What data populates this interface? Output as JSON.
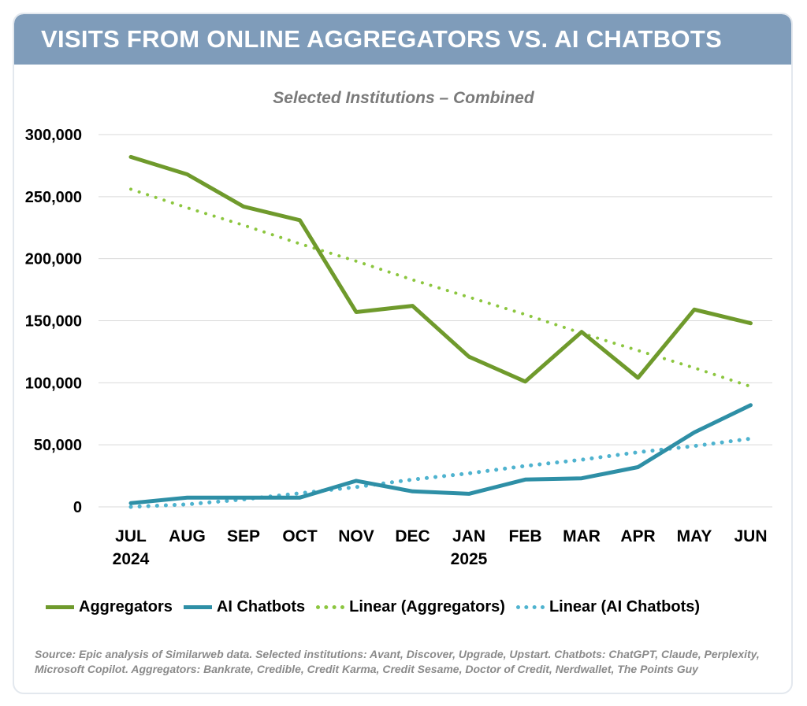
{
  "header": {
    "title": "VISITS FROM ONLINE AGGREGATORS VS. AI CHATBOTS"
  },
  "subtitle": "Selected Institutions – Combined",
  "source": "Source: Epic analysis of Similarweb data. Selected institutions: Avant, Discover, Upgrade, Upstart. Chatbots: ChatGPT, Claude, Perplexity, Microsoft Copilot. Aggregators: Bankrate, Credible, Credit Karma, Credit Sesame, Doctor of Credit, Nerdwallet, The Points Guy",
  "colors": {
    "aggregators": "#6f9a2c",
    "ai_chatbots": "#2e8fa6",
    "linear_aggregators": "#8cc63f",
    "linear_ai": "#4fb3cf",
    "grid": "#d9d9d9"
  },
  "chart_data": {
    "type": "line",
    "categories": [
      "JUL",
      "AUG",
      "SEP",
      "OCT",
      "NOV",
      "DEC",
      "JAN",
      "FEB",
      "MAR",
      "APR",
      "MAY",
      "JUN"
    ],
    "category_sublabels": [
      "2024",
      "",
      "",
      "",
      "",
      "",
      "2025",
      "",
      "",
      "",
      "",
      ""
    ],
    "ylim": [
      0,
      300000
    ],
    "yticks": [
      0,
      50000,
      100000,
      150000,
      200000,
      250000,
      300000
    ],
    "ytick_labels": [
      "0",
      "50,000",
      "100,000",
      "150,000",
      "200,000",
      "250,000",
      "300,000"
    ],
    "grid": true,
    "legend_position": "bottom",
    "series": [
      {
        "name": "Aggregators",
        "style": "solid",
        "values": [
          282000,
          268000,
          242000,
          231000,
          157000,
          162000,
          121000,
          101000,
          141000,
          104000,
          159000,
          148000
        ]
      },
      {
        "name": "AI Chatbots",
        "style": "solid",
        "values": [
          3000,
          7500,
          7500,
          7500,
          21000,
          12500,
          10500,
          22000,
          23000,
          32000,
          60000,
          82000
        ]
      },
      {
        "name": "Linear (Aggregators)",
        "style": "dotted",
        "values": [
          256000,
          241000,
          227000,
          212000,
          198000,
          183000,
          169000,
          155000,
          140000,
          126000,
          112000,
          97000
        ]
      },
      {
        "name": "Linear (AI Chatbots)",
        "style": "dotted",
        "values": [
          -3000,
          2000,
          6000,
          11000,
          16000,
          22000,
          27000,
          33000,
          38000,
          44000,
          49000,
          55000
        ]
      }
    ]
  }
}
